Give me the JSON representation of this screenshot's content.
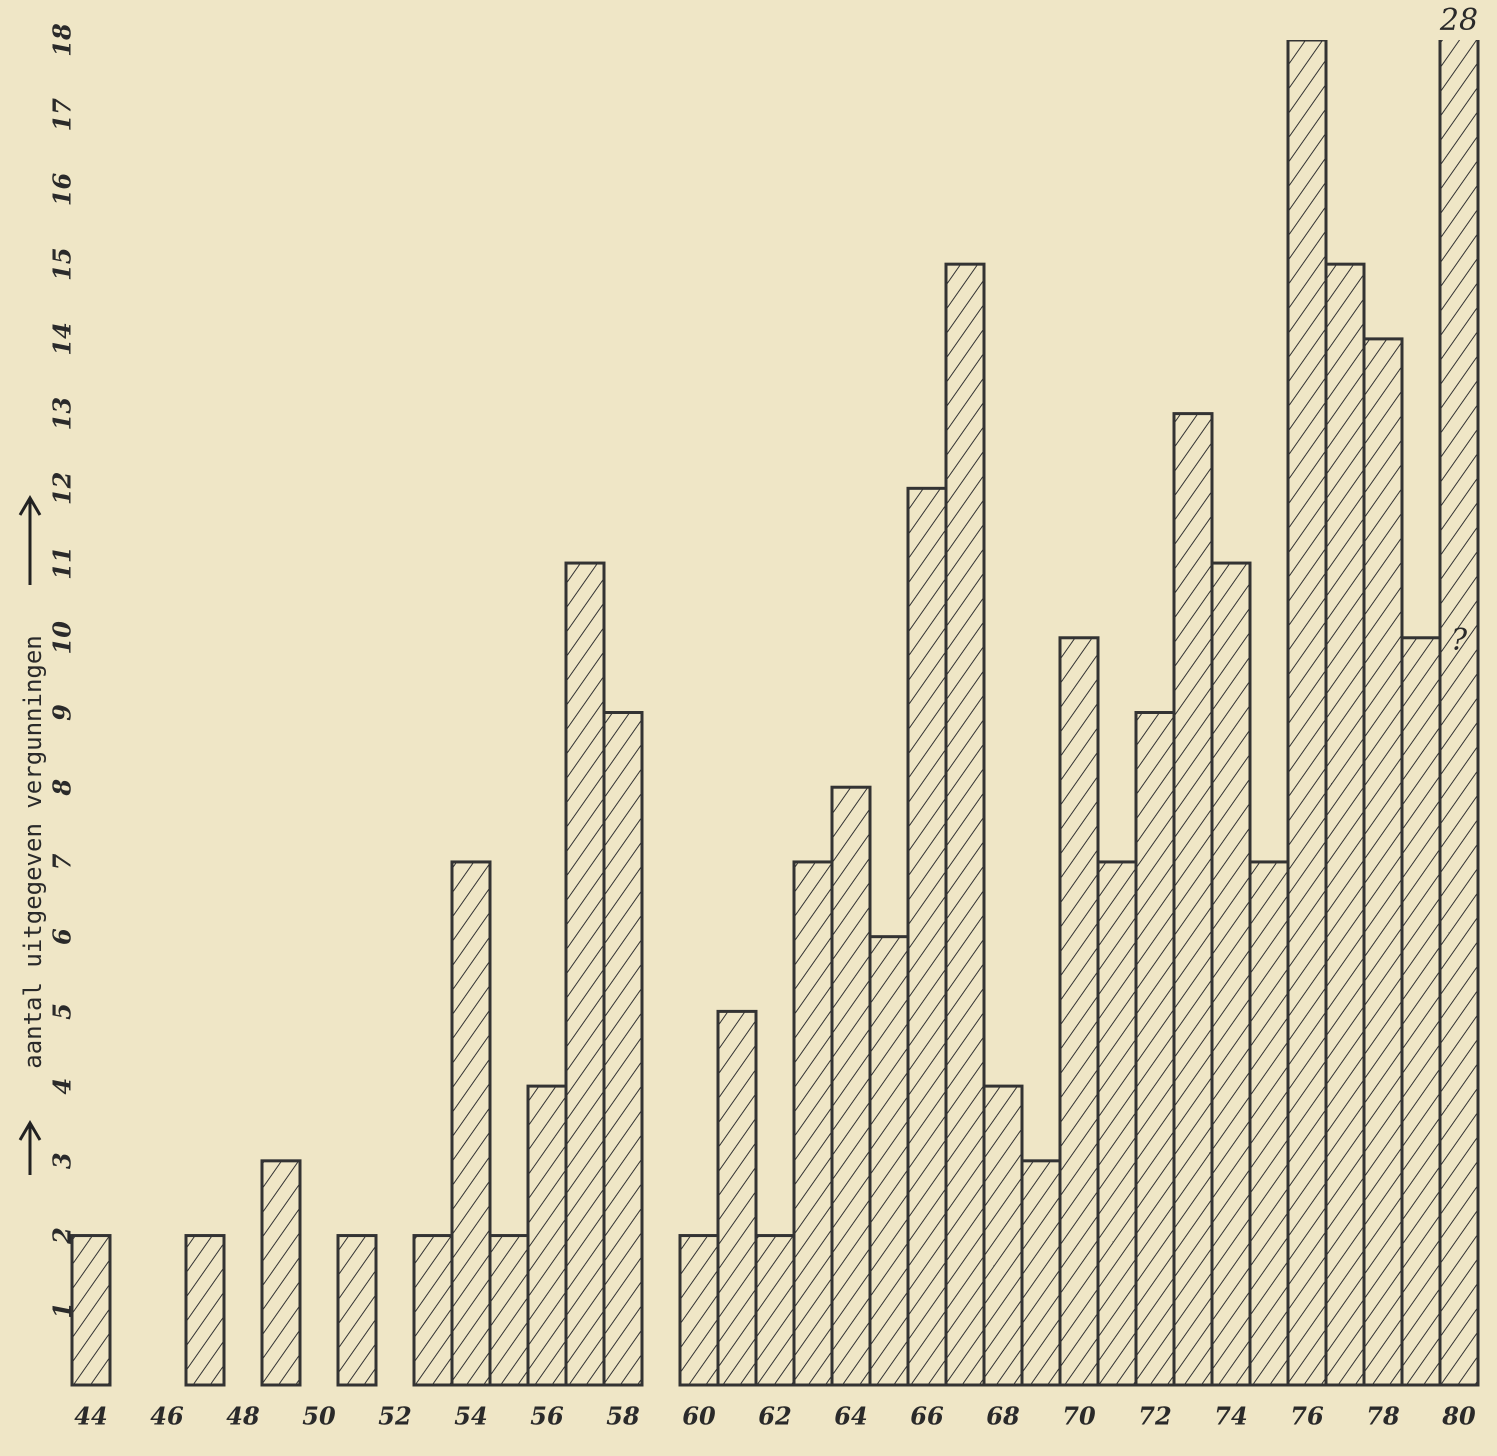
{
  "chart_data": {
    "type": "bar",
    "y_label": "aantal uitgegeven vergunningen",
    "categories": [
      "44",
      null,
      "46",
      null,
      "48",
      null,
      "50",
      null,
      "52",
      null,
      "54",
      null,
      "56",
      null,
      "58",
      null,
      "60",
      null,
      "62",
      null,
      "64",
      null,
      "66",
      null,
      "68",
      null,
      "70",
      null,
      "72",
      null,
      "74",
      null,
      "76",
      null,
      "78",
      null,
      "80"
    ],
    "values": [
      2,
      0,
      0,
      2,
      0,
      3,
      0,
      2,
      0,
      2,
      7,
      2,
      4,
      11,
      9,
      0,
      2,
      5,
      2,
      7,
      8,
      6,
      12,
      15,
      4,
      3,
      10,
      7,
      9,
      13,
      11,
      7,
      18,
      15,
      14,
      10,
      28
    ],
    "value_labels": [
      null,
      null,
      null,
      null,
      null,
      null,
      null,
      null,
      null,
      null,
      null,
      null,
      null,
      null,
      null,
      null,
      null,
      null,
      null,
      null,
      null,
      null,
      null,
      null,
      null,
      null,
      null,
      null,
      null,
      null,
      null,
      null,
      null,
      null,
      null,
      null,
      "28"
    ],
    "annotation": "?",
    "color": "#333333",
    "ylim": [
      0,
      18
    ],
    "yticks": [
      1,
      2,
      3,
      4,
      5,
      6,
      7,
      8,
      9,
      10,
      11,
      12,
      13,
      14,
      15,
      16,
      17,
      18
    ]
  }
}
